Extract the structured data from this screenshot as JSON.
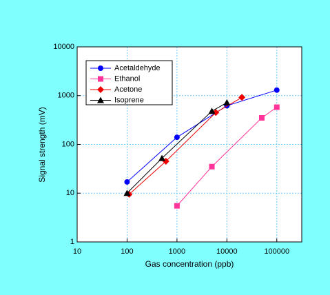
{
  "chart_data": {
    "type": "line",
    "x_label": "Gas concentration (ppb)",
    "y_label": "Signal strength (mV)",
    "xlog": true,
    "ylog": true,
    "grid": true,
    "legend": "upper left",
    "xlim": [
      10,
      316228
    ],
    "ylim": [
      1,
      10000
    ],
    "xticks": [
      10,
      100,
      1000,
      10000,
      100000
    ],
    "yticks": [
      1,
      10,
      100,
      1000,
      10000
    ],
    "series": [
      {
        "name": "Acetaldehyde",
        "color": "#0000ff",
        "marker": "circle",
        "x": [
          100,
          1000,
          10000,
          100000
        ],
        "values": [
          17,
          140,
          620,
          1300
        ]
      },
      {
        "name": "Ethanol",
        "color": "#ff3399",
        "marker": "square",
        "x": [
          1000,
          5000,
          50000,
          100000
        ],
        "values": [
          5.5,
          35,
          350,
          580
        ]
      },
      {
        "name": "Acetone",
        "color": "#ee0000",
        "marker": "diamond",
        "x": [
          110,
          600,
          6000,
          20000
        ],
        "values": [
          9.5,
          45,
          450,
          920
        ]
      },
      {
        "name": "Isoprene",
        "color": "#000000",
        "marker": "triangle",
        "x": [
          100,
          500,
          5000,
          10000
        ],
        "values": [
          10,
          52,
          480,
          720
        ]
      }
    ]
  }
}
